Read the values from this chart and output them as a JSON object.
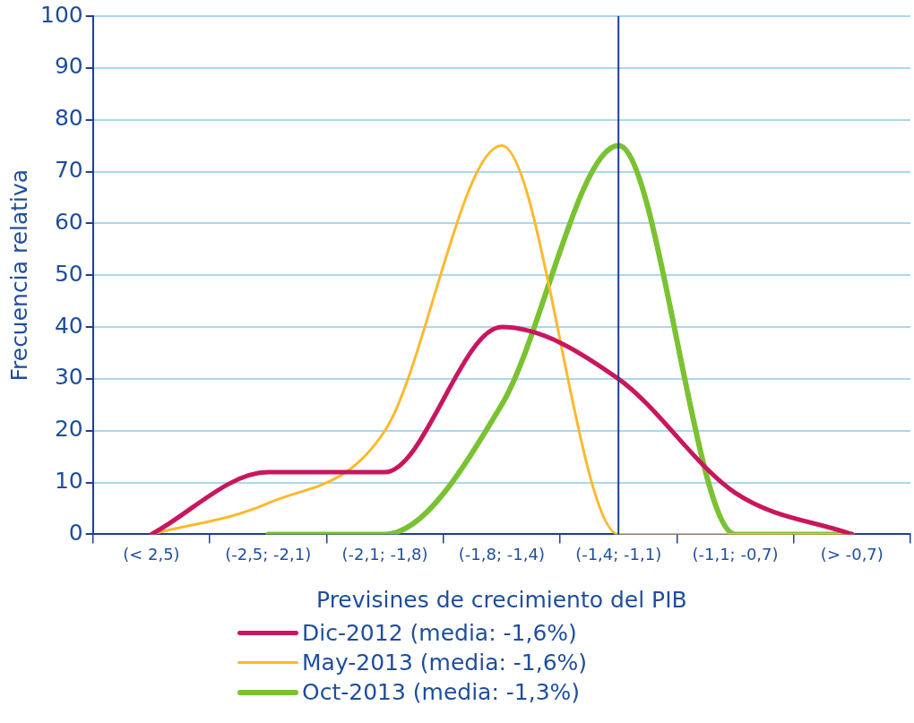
{
  "chart_data": {
    "type": "line",
    "xlabel": "Previsines de crecimiento del PIB",
    "ylabel": "Frecuencia relativa",
    "categories": [
      "(< 2,5)",
      "(-2,5; -2,1)",
      "(-2,1; -1,8)",
      "(-1,8; -1,4)",
      "(-1,4; -1,1)",
      "(-1,1; -0,7)",
      "(> -0,7)"
    ],
    "series": [
      {
        "name": "Dic-2012 (media: -1,6%)",
        "color": "#c8175e",
        "values": [
          0,
          12,
          12,
          40,
          30,
          8,
          0
        ]
      },
      {
        "name": "May-2013 (media: -1,6%)",
        "color": "#fdb92d",
        "values": [
          0,
          6,
          20,
          75,
          0,
          0,
          0
        ]
      },
      {
        "name": "Oct-2013 (media: -1,3%)",
        "color": "#7ac232",
        "values": [
          null,
          0,
          0,
          25,
          75,
          0,
          0
        ]
      }
    ],
    "ylim": [
      0,
      100
    ],
    "yticks": [
      0,
      10,
      20,
      30,
      40,
      50,
      60,
      70,
      80,
      90,
      100
    ],
    "grid": "y",
    "legend": "bottom",
    "marker": "none",
    "ref_lines": [
      {
        "axis": "x",
        "value": "(-1,4; -1,1)",
        "color": "#1f3f8f"
      }
    ]
  }
}
